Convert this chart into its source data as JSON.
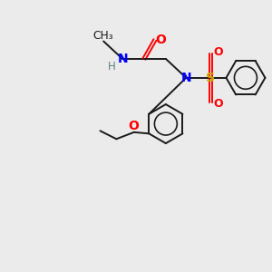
{
  "background_color": "#ebebeb",
  "atom_colors": {
    "N": "#0000ff",
    "O": "#ff0000",
    "S": "#ccaa00",
    "C": "#1a1a1a",
    "H": "#5a8080"
  },
  "bond_color": "#1a1a1a",
  "figsize": [
    3.0,
    3.0
  ],
  "dpi": 100,
  "bond_lw": 1.4,
  "font_size": 10
}
